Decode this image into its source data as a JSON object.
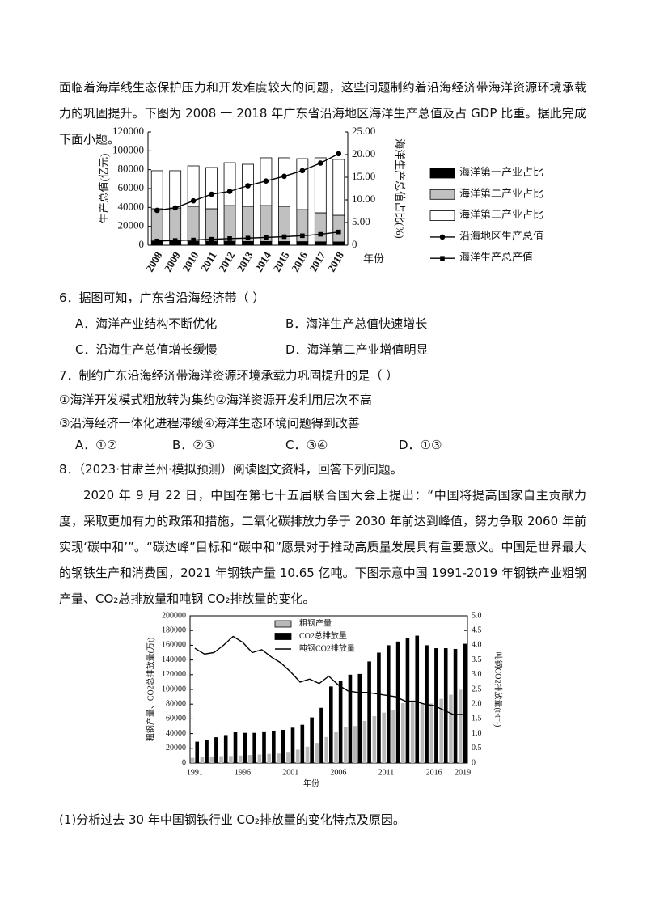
{
  "intro": "面临着海岸线生态保护压力和开发难度较大的问题，这些问题制约着沿海经济带海洋资源环境承载力的巩固提升。下图为 2008 一 2018 年广东省沿海地区海洋生产总值及占 GDP 比重。据此完成下面小题。",
  "q6": {
    "stem": "6．据图可知，广东省沿海经济带（ ）",
    "options": [
      "A．海洋产业结构不断优化",
      "B．海洋生产总值快速增长",
      "C．沿海生产总值增长缓慢",
      "D．海洋第二产业增值明显"
    ]
  },
  "q7": {
    "stem": "7．制约广东沿海经济带海洋资源环境承载力巩固提升的是（ ）",
    "statements": [
      "①海洋开发模式粗放转为集约②海洋资源开发利用层次不高",
      "③沿海经济一体化进程滞缓④海洋生态环境问题得到改善"
    ],
    "options": [
      "A．①②",
      "B．②③",
      "C．③④",
      "D．①③"
    ]
  },
  "q8": {
    "stem": "8．（2023·甘肃兰州·模拟预测）阅读图文资料，回答下列问题。",
    "material": "2020 年 9 月 22 日，中国在第七十五届联合国大会上提出：“中国将提高国家自主贡献力度，采取更加有力的政策和措施，二氧化碳排放力争于 2030 年前达到峰值，努力争取 2060 年前实现‘碳中和’”。“碳达峰”目标和“碳中和”愿景对于推动高质量发展具有重要意义。中国是世界最大的钢铁生产和消费国，2021 年钢铁产量 10.65 亿吨。下图示意中国 1991-2019 年钢铁产业粗钢产量、CO₂总排放量和吨钢 CO₂排放量的变化。",
    "sub1": "(1)分析过去 30 年中国钢铁行业 CO₂排放量的变化特点及原因。"
  },
  "chart_data": [
    {
      "type": "bar",
      "stacked": true,
      "y_label": "生产总值(亿元)",
      "y2_label": "海洋生产总值占比(%)",
      "x_label": "年份",
      "categories": [
        "2008",
        "2009",
        "2010",
        "2011",
        "2012",
        "2013",
        "2014",
        "2015",
        "2016",
        "2017",
        "2018"
      ],
      "ylim": [
        0,
        120000
      ],
      "yticks": [
        0,
        20000,
        40000,
        60000,
        80000,
        100000,
        120000
      ],
      "y2lim": [
        0,
        25
      ],
      "y2ticks": [
        0,
        {
          "value": 5,
          "label": "5.00"
        },
        {
          "value": 10,
          "label": "10.00"
        },
        {
          "value": 15,
          "label": "15.00"
        },
        {
          "value": 20,
          "label": "20.00"
        },
        {
          "value": 25,
          "label": "25.00"
        }
      ],
      "series": [
        {
          "name": "海洋第一产业占比",
          "type": "bar",
          "color": "#000000",
          "values": [
            4500,
            4500,
            4300,
            4200,
            4200,
            4000,
            4000,
            3900,
            3800,
            3600,
            3500
          ]
        },
        {
          "name": "海洋第二产业占比",
          "type": "bar",
          "color": "#c0c0c0",
          "values": [
            34100,
            34900,
            36800,
            34400,
            37800,
            37100,
            38000,
            37200,
            33900,
            30700,
            28200
          ]
        },
        {
          "name": "海洋第三产业占比",
          "type": "bar",
          "color": "#ffffff",
          "values": [
            40300,
            39500,
            42900,
            43700,
            45400,
            44600,
            50600,
            51500,
            54000,
            58300,
            59200
          ]
        },
        {
          "name": "沿海地区生产总值",
          "type": "line",
          "marker": "circle",
          "color": "#000000",
          "values": [
            36900,
            39500,
            47000,
            54000,
            57000,
            63000,
            68000,
            73000,
            79000,
            87000,
            97000
          ]
        },
        {
          "name": "海洋生产总产值",
          "type": "line",
          "marker": "square",
          "color": "#000000",
          "values": [
            4500,
            5000,
            5500,
            6300,
            7000,
            7500,
            8200,
            9000,
            10000,
            11500,
            14000
          ]
        }
      ]
    },
    {
      "type": "bar",
      "stacked": false,
      "y_label": "粗钢产量、CO2总排放量(万t)",
      "y2_label": "吨钢CO2排放量(t·t⁻¹)",
      "x_label": "年份",
      "categories": [
        "1991",
        null,
        null,
        null,
        null,
        "1996",
        null,
        null,
        null,
        null,
        "2001",
        null,
        null,
        null,
        null,
        "2006",
        null,
        null,
        null,
        null,
        "2011",
        null,
        null,
        null,
        null,
        "2016",
        null,
        null,
        "2019"
      ],
      "ylim": [
        0,
        200000
      ],
      "yticks": [
        0,
        20000,
        40000,
        60000,
        80000,
        100000,
        120000,
        140000,
        160000,
        180000,
        200000
      ],
      "y2lim": [
        0,
        5
      ],
      "y2ticks": [
        0,
        0.5,
        {
          "value": 1,
          "label": "1.0"
        },
        1.5,
        {
          "value": 2,
          "label": "2.0"
        },
        2.5,
        {
          "value": 3,
          "label": "3.0"
        },
        3.5,
        {
          "value": 4,
          "label": "4.0"
        },
        4.5,
        {
          "value": 5,
          "label": "5.0"
        }
      ],
      "series": [
        {
          "name": "粗钢产量",
          "type": "bar",
          "color": "#b8b8b8",
          "values": [
            7100,
            8100,
            8900,
            9300,
            9500,
            10100,
            10900,
            11600,
            12400,
            12900,
            15200,
            18200,
            22200,
            27300,
            35300,
            41900,
            48900,
            50300,
            57200,
            63700,
            68500,
            72400,
            81300,
            82300,
            80400,
            80800,
            87100,
            92800,
            99600
          ]
        },
        {
          "name": "CO2总排放量",
          "type": "bar",
          "color": "#000000",
          "values": [
            29000,
            31000,
            35000,
            38000,
            42000,
            41000,
            41000,
            43000,
            44000,
            45000,
            48000,
            52000,
            62000,
            75000,
            104000,
            112000,
            120000,
            121000,
            138000,
            150000,
            160000,
            165000,
            170000,
            173000,
            160000,
            156000,
            156000,
            155000,
            162000
          ]
        },
        {
          "name": "吨钢CO2排放量",
          "type": "line",
          "axis": "y2",
          "color": "#000000",
          "values": [
            3.9,
            3.7,
            3.75,
            4.0,
            4.3,
            4.1,
            3.75,
            3.85,
            3.6,
            3.4,
            3.1,
            2.75,
            2.85,
            2.7,
            2.95,
            2.65,
            2.45,
            2.4,
            2.4,
            2.35,
            2.3,
            2.25,
            2.1,
            2.1,
            2.0,
            1.95,
            1.8,
            1.65,
            1.65
          ]
        }
      ]
    }
  ]
}
